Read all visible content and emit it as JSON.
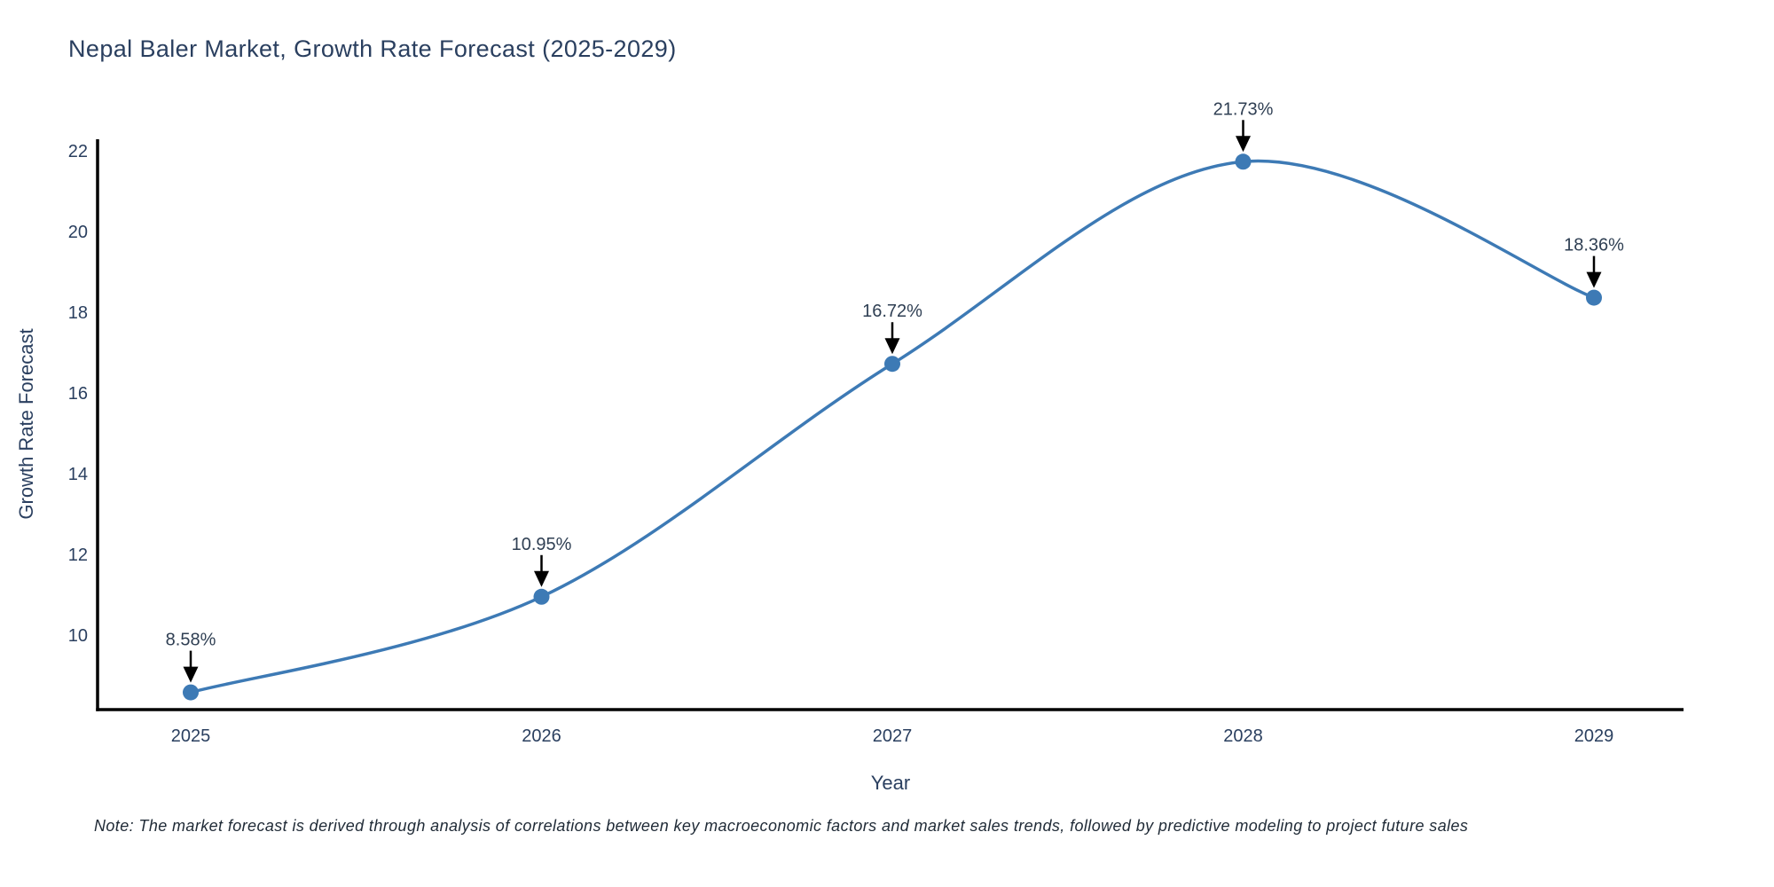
{
  "chart_data": {
    "type": "line",
    "title": "Nepal Baler Market, Growth Rate Forecast (2025-2029)",
    "xlabel": "Year",
    "ylabel": "Growth Rate Forecast",
    "x": [
      2025,
      2026,
      2027,
      2028,
      2029
    ],
    "series": [
      {
        "name": "Growth Rate Forecast",
        "values": [
          8.58,
          10.95,
          16.72,
          21.73,
          18.36
        ]
      }
    ],
    "point_labels": [
      "8.58%",
      "10.95%",
      "16.72%",
      "21.73%",
      "18.36%"
    ],
    "y_ticks": [
      10,
      12,
      14,
      16,
      18,
      20,
      22
    ],
    "ylim": [
      8.1,
      22.35
    ],
    "xlim": [
      2024.73,
      2029.26
    ],
    "line_shape": "spline",
    "grid": false,
    "legend_position": "none",
    "annotations_style": "value label with downward arrow to each marker",
    "colors": {
      "line": "#3d7ab5",
      "marker": "#3d7ab5",
      "axis": "#000000",
      "arrow": "#000000",
      "title": "#2a3f5f",
      "axis_title": "#2a3f5f",
      "tick_label": "#2a3f5f",
      "annotation": "#2f3f53",
      "background": "#ffffff"
    }
  },
  "note": {
    "text": "Note: The market forecast is derived through analysis of correlations between key macroeconomic factors and market sales trends, followed by predictive modeling to project future sales"
  }
}
